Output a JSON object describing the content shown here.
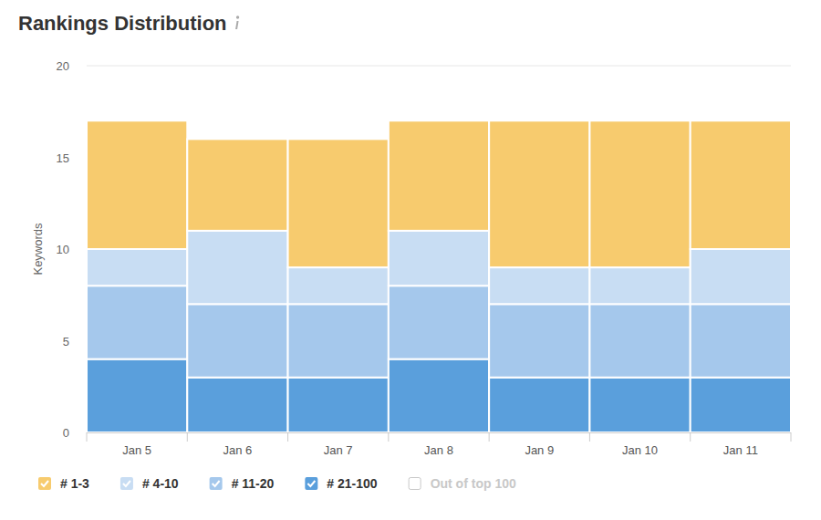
{
  "chart_data": {
    "type": "bar",
    "title": "Rankings Distribution",
    "y_label": "Keywords",
    "categories": [
      "Jan 5",
      "Jan 6",
      "Jan 7",
      "Jan 8",
      "Jan 9",
      "Jan 10",
      "Jan 11"
    ],
    "series": [
      {
        "name": "# 1-3",
        "color": "#f7cb6e",
        "values": [
          7,
          5,
          7,
          6,
          8,
          8,
          7
        ]
      },
      {
        "name": "# 4-10",
        "color": "#c8ddf3",
        "values": [
          2,
          4,
          2,
          3,
          2,
          2,
          3
        ]
      },
      {
        "name": "# 11-20",
        "color": "#a5c8ec",
        "values": [
          4,
          4,
          4,
          4,
          4,
          4,
          4
        ]
      },
      {
        "name": "# 21-100",
        "color": "#5a9fdc",
        "values": [
          4,
          3,
          3,
          4,
          3,
          3,
          3
        ]
      },
      {
        "name": "Out of top 100",
        "color": "#c8c8c8",
        "values": [
          null,
          null,
          null,
          null,
          null,
          null,
          null
        ]
      }
    ],
    "ylim": [
      0,
      20
    ],
    "yticks": [
      0,
      5,
      10,
      15,
      20
    ],
    "grid": true,
    "stacked": true,
    "legend": "bottom"
  }
}
